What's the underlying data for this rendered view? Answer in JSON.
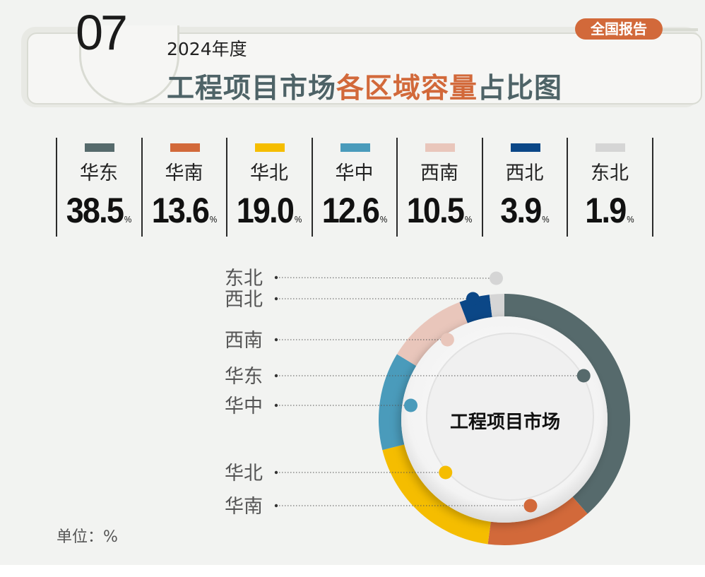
{
  "header": {
    "number": "07",
    "year": "2024年度",
    "title_part1": "工程项目市场",
    "title_highlight": "各区域容量",
    "title_part2": "占比图",
    "badge": "全国报告"
  },
  "center_label": "工程项目市场",
  "unit_label": "单位：%",
  "pct_suffix": "%",
  "colors": {
    "华东": "#566a6c",
    "华南": "#d2693a",
    "华北": "#f5bd00",
    "华中": "#4a9bbb",
    "西南": "#e9c6bb",
    "西北": "#0b4787",
    "东北": "#d5d5d5",
    "accent": "#d2693a"
  },
  "chart_data": {
    "type": "pie",
    "variant": "donut",
    "unit": "%",
    "categories": [
      "华东",
      "华南",
      "华北",
      "华中",
      "西南",
      "西北",
      "东北"
    ],
    "values": [
      38.5,
      13.6,
      19.0,
      12.6,
      10.5,
      3.9,
      1.9
    ],
    "value_labels": [
      "38.5",
      "13.6",
      "19.0",
      "12.6",
      "10.5",
      "3.9",
      "1.9"
    ],
    "callout_labels": [
      "东北",
      "西北",
      "西南",
      "华东",
      "华中",
      "华北",
      "华南"
    ]
  }
}
